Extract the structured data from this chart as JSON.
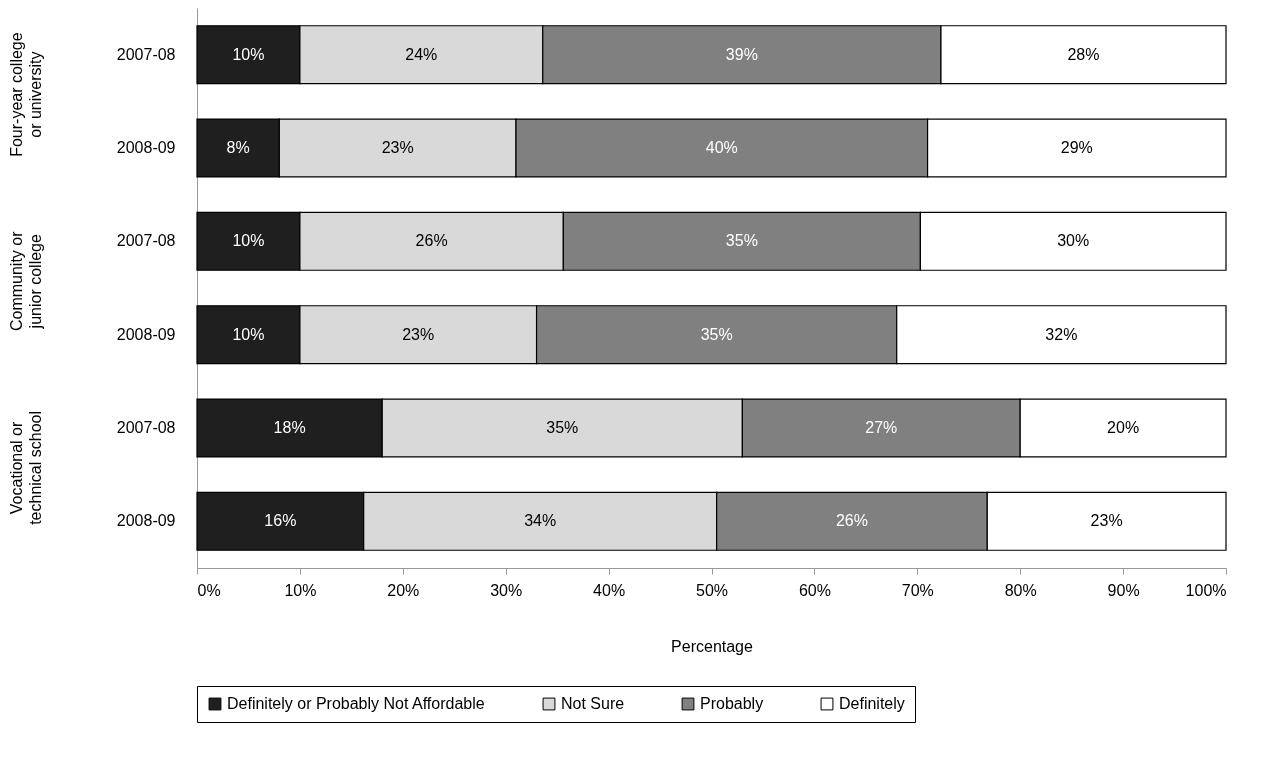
{
  "chart_data": {
    "type": "bar",
    "orientation": "horizontal",
    "stacked": true,
    "categories": [
      "2007-08",
      "2008-09",
      "2007-08",
      "2008-09",
      "2007-08",
      "2008-09"
    ],
    "series": [
      {
        "name": "Definitely or Probably Not Affordable",
        "color": "#1f1f1f",
        "values": [
          10.0,
          8.0,
          10.0,
          10.0,
          18.0,
          16.2
        ],
        "value_labels": [
          "10%",
          "8%",
          "10%",
          "10%",
          "18%",
          "16%"
        ]
      },
      {
        "name": "Not Sure",
        "color": "#d9d9d9",
        "values": [
          23.6,
          23.0,
          25.6,
          23.0,
          35.0,
          34.3
        ],
        "value_labels": [
          "24%",
          "23%",
          "26%",
          "23%",
          "35%",
          "34%"
        ]
      },
      {
        "name": "Probably",
        "color": "#808080",
        "values": [
          38.7,
          40.0,
          34.7,
          35.0,
          27.0,
          26.3
        ],
        "value_labels": [
          "39%",
          "40%",
          "35%",
          "35%",
          "27%",
          "26%"
        ]
      },
      {
        "name": "Definitely",
        "color": "#ffffff",
        "values": [
          27.7,
          29.0,
          29.7,
          32.0,
          20.0,
          23.2
        ],
        "value_labels": [
          "28%",
          "29%",
          "30%",
          "32%",
          "20%",
          "23%"
        ]
      }
    ],
    "annotations": [
      "Four-year college or university",
      "Community or junior college",
      "Vocational or technical school"
    ],
    "xlabel": "Percentage",
    "xlim": [
      0,
      100
    ],
    "xticks": [
      {
        "value": 0,
        "label": "0%"
      },
      {
        "value": 10,
        "label": "10%"
      },
      {
        "value": 20,
        "label": "20%"
      },
      {
        "value": 30,
        "label": "30%"
      },
      {
        "value": 40,
        "label": "40%"
      },
      {
        "value": 50,
        "label": "50%"
      },
      {
        "value": 60,
        "label": "60%"
      },
      {
        "value": 70,
        "label": "70%"
      },
      {
        "value": 80,
        "label": "80%"
      },
      {
        "value": 90,
        "label": "90%"
      },
      {
        "value": 100,
        "label": "100%"
      }
    ],
    "grid": false,
    "legend": "bottom"
  }
}
